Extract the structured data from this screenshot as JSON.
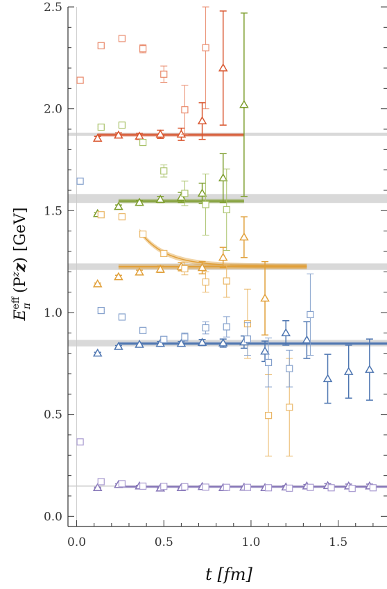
{
  "chart_data": {
    "type": "scatter",
    "xlabel": "t [fm]",
    "ylabel": "E_π^eff(P^z ẑ) [GeV]",
    "ylabel_parts": {
      "E": "E",
      "sup": "eff",
      "sub": "π",
      "arg": "(P",
      "argsup": "z",
      "vec": "z",
      "close": ")",
      "unit": "[GeV]"
    },
    "xlim": [
      -0.05,
      1.78
    ],
    "ylim": [
      -0.05,
      2.5
    ],
    "x_ticks": [
      "0.0",
      "0.5",
      "1.0",
      "1.5"
    ],
    "x_tick_values": [
      0.0,
      0.5,
      1.0,
      1.5
    ],
    "y_ticks": [
      "0.0",
      "0.5",
      "1.0",
      "1.5",
      "2.0",
      "2.5"
    ],
    "y_tick_values": [
      0.0,
      0.5,
      1.0,
      1.5,
      2.0,
      2.5
    ],
    "bands": [
      {
        "y": 1.875,
        "err": 0.008,
        "x_start": -0.05,
        "x_end": 1.78
      },
      {
        "y": 1.56,
        "err": 0.022,
        "x_start": -0.05,
        "x_end": 1.78
      },
      {
        "y": 1.225,
        "err": 0.016,
        "x_start": -0.05,
        "x_end": 1.78
      },
      {
        "y": 0.85,
        "err": 0.016,
        "x_start": -0.05,
        "x_end": 1.78
      },
      {
        "y": 0.15,
        "err": 0.002,
        "x_start": -0.05,
        "x_end": 1.78
      }
    ],
    "fits": [
      {
        "color": "#d9562f",
        "y": 1.872,
        "err": 0.008,
        "x_start": 0.12,
        "x_end": 0.96
      },
      {
        "color": "#7e9e2e",
        "y": 1.547,
        "err": 0.01,
        "x_start": 0.24,
        "x_end": 0.96
      },
      {
        "color": "#e1a03a",
        "y": 1.225,
        "err": 0.012,
        "x_start": 0.24,
        "x_end": 1.32
      },
      {
        "color": "#4e76b1",
        "y": 0.848,
        "err": 0.008,
        "x_start": 0.24,
        "x_end": 1.78
      },
      {
        "color": "#8676b8",
        "y": 0.145,
        "err": 0.006,
        "x_start": 0.24,
        "x_end": 1.78
      }
    ],
    "curves": [
      {
        "color": "#e1a03a",
        "asymptote": 1.228,
        "amp": 0.172,
        "decay": 0.15,
        "x_start": 0.36,
        "x_end": 1.32,
        "err": 0.012
      }
    ],
    "series": [
      {
        "color": "#d9562f",
        "marker": "triangle",
        "open": false,
        "points": [
          [
            0.12,
            1.855,
            0.01
          ],
          [
            0.24,
            1.87,
            0.012
          ],
          [
            0.36,
            1.865,
            0.015
          ],
          [
            0.48,
            1.875,
            0.02
          ],
          [
            0.6,
            1.875,
            0.03
          ],
          [
            0.72,
            1.94,
            0.09
          ],
          [
            0.84,
            2.2,
            0.28
          ]
        ]
      },
      {
        "color": "#7e9e2e",
        "marker": "triangle",
        "open": false,
        "points": [
          [
            0.12,
            1.485,
            0.005
          ],
          [
            0.24,
            1.52,
            0.008
          ],
          [
            0.36,
            1.54,
            0.01
          ],
          [
            0.48,
            1.555,
            0.015
          ],
          [
            0.6,
            1.565,
            0.025
          ],
          [
            0.72,
            1.585,
            0.05
          ],
          [
            0.84,
            1.66,
            0.12
          ],
          [
            0.96,
            2.02,
            0.45
          ]
        ]
      },
      {
        "color": "#e1a03a",
        "marker": "triangle",
        "open": false,
        "points": [
          [
            0.12,
            1.14,
            0.005
          ],
          [
            0.24,
            1.175,
            0.008
          ],
          [
            0.36,
            1.198,
            0.01
          ],
          [
            0.48,
            1.212,
            0.015
          ],
          [
            0.6,
            1.225,
            0.02
          ],
          [
            0.72,
            1.22,
            0.03
          ],
          [
            0.84,
            1.27,
            0.05
          ],
          [
            0.96,
            1.37,
            0.1
          ],
          [
            1.08,
            1.07,
            0.18
          ]
        ]
      },
      {
        "color": "#4e76b1",
        "marker": "triangle",
        "open": false,
        "points": [
          [
            0.12,
            0.8,
            0.005
          ],
          [
            0.24,
            0.833,
            0.005
          ],
          [
            0.36,
            0.843,
            0.005
          ],
          [
            0.48,
            0.848,
            0.01
          ],
          [
            0.6,
            0.848,
            0.01
          ],
          [
            0.72,
            0.853,
            0.015
          ],
          [
            0.84,
            0.85,
            0.02
          ],
          [
            0.96,
            0.855,
            0.03
          ],
          [
            1.08,
            0.81,
            0.05
          ],
          [
            1.2,
            0.9,
            0.06
          ],
          [
            1.32,
            0.865,
            0.09
          ],
          [
            1.44,
            0.675,
            0.12
          ],
          [
            1.56,
            0.71,
            0.13
          ],
          [
            1.68,
            0.72,
            0.15
          ]
        ]
      },
      {
        "color": "#8676b8",
        "marker": "triangle",
        "open": false,
        "points": [
          [
            0.12,
            0.14,
            0.003
          ],
          [
            0.24,
            0.155,
            0.004
          ],
          [
            0.36,
            0.148,
            0.004
          ],
          [
            0.48,
            0.138,
            0.004
          ],
          [
            0.6,
            0.14,
            0.004
          ],
          [
            0.72,
            0.145,
            0.005
          ],
          [
            0.84,
            0.14,
            0.006
          ],
          [
            0.96,
            0.142,
            0.006
          ],
          [
            1.08,
            0.14,
            0.007
          ],
          [
            1.2,
            0.143,
            0.008
          ],
          [
            1.32,
            0.148,
            0.008
          ],
          [
            1.44,
            0.15,
            0.01
          ],
          [
            1.56,
            0.148,
            0.01
          ],
          [
            1.68,
            0.148,
            0.01
          ]
        ]
      },
      {
        "color": "#e98a6c",
        "marker": "square",
        "open": true,
        "points": [
          [
            0.02,
            2.14,
            0.01
          ],
          [
            0.14,
            2.31,
            0.01
          ],
          [
            0.26,
            2.345,
            0.015
          ],
          [
            0.38,
            2.295,
            0.02
          ],
          [
            0.5,
            2.17,
            0.04
          ],
          [
            0.62,
            1.995,
            0.12
          ],
          [
            0.74,
            2.3,
            0.3
          ]
        ]
      },
      {
        "color": "#a9c26a",
        "marker": "square",
        "open": true,
        "points": [
          [
            0.14,
            1.91,
            0.005
          ],
          [
            0.26,
            1.92,
            0.01
          ],
          [
            0.38,
            1.835,
            0.015
          ],
          [
            0.5,
            1.695,
            0.03
          ],
          [
            0.62,
            1.585,
            0.06
          ],
          [
            0.74,
            1.53,
            0.15
          ],
          [
            0.86,
            1.505,
            0.2
          ]
        ]
      },
      {
        "color": "#eab767",
        "marker": "square",
        "open": true,
        "points": [
          [
            0.14,
            1.48,
            0.005
          ],
          [
            0.26,
            1.47,
            0.01
          ],
          [
            0.38,
            1.385,
            0.01
          ],
          [
            0.5,
            1.29,
            0.015
          ],
          [
            0.62,
            1.215,
            0.03
          ],
          [
            0.74,
            1.15,
            0.05
          ],
          [
            0.86,
            1.155,
            0.08
          ],
          [
            0.98,
            0.945,
            0.17
          ],
          [
            1.1,
            0.495,
            0.2
          ],
          [
            1.22,
            0.535,
            0.24
          ]
        ]
      },
      {
        "color": "#84a0cc",
        "marker": "square",
        "open": true,
        "points": [
          [
            0.02,
            1.645,
            0.005
          ],
          [
            0.14,
            1.01,
            0.005
          ],
          [
            0.26,
            0.978,
            0.008
          ],
          [
            0.38,
            0.912,
            0.01
          ],
          [
            0.5,
            0.868,
            0.015
          ],
          [
            0.62,
            0.88,
            0.02
          ],
          [
            0.74,
            0.925,
            0.03
          ],
          [
            0.86,
            0.93,
            0.05
          ],
          [
            0.98,
            0.87,
            0.08
          ],
          [
            1.1,
            0.755,
            0.12
          ],
          [
            1.22,
            0.725,
            0.09
          ],
          [
            1.34,
            0.99,
            0.2
          ]
        ]
      },
      {
        "color": "#a99bd0",
        "marker": "square",
        "open": true,
        "points": [
          [
            0.02,
            0.365,
            0.005
          ],
          [
            0.14,
            0.17,
            0.005
          ],
          [
            0.26,
            0.16,
            0.005
          ],
          [
            0.38,
            0.148,
            0.005
          ],
          [
            0.5,
            0.147,
            0.005
          ],
          [
            0.62,
            0.145,
            0.005
          ],
          [
            0.74,
            0.143,
            0.005
          ],
          [
            0.86,
            0.142,
            0.005
          ],
          [
            0.98,
            0.142,
            0.006
          ],
          [
            1.1,
            0.14,
            0.006
          ],
          [
            1.22,
            0.138,
            0.006
          ],
          [
            1.34,
            0.142,
            0.008
          ],
          [
            1.46,
            0.14,
            0.008
          ],
          [
            1.58,
            0.137,
            0.01
          ],
          [
            1.7,
            0.14,
            0.01
          ]
        ]
      }
    ]
  }
}
